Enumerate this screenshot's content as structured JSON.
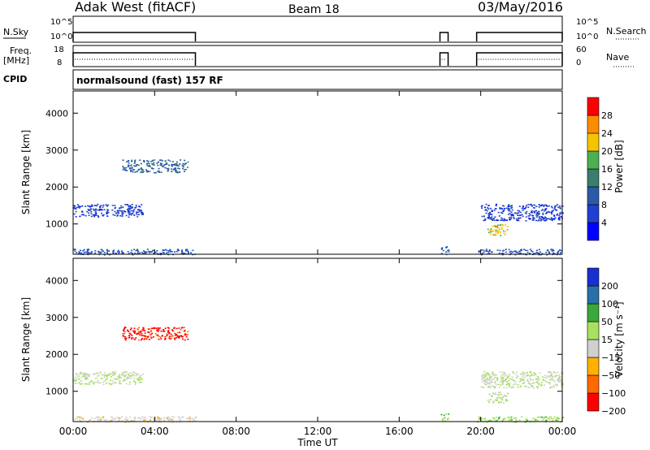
{
  "header": {
    "station": "Adak West (fitACF)",
    "beam": "Beam 18",
    "date": "03/May/2016"
  },
  "side_labels": {
    "nsky": "N.Sky",
    "freq": "Freq.",
    "freq_unit": "[MHz]",
    "cpid": "CPID",
    "nsearch": "N.Search",
    "nave": "Nave"
  },
  "cpid_text": "normalsound (fast) 157 RF",
  "noise_panel": {
    "left_ticks": [
      "10^5",
      "10^0"
    ],
    "right_ticks": [
      "10^5",
      "10^0"
    ]
  },
  "freq_panel": {
    "left_ticks": [
      "18",
      "8"
    ],
    "right_ticks": [
      "60",
      "0"
    ]
  },
  "chart_data": [
    {
      "type": "heatmap",
      "name": "power",
      "ylabel": "Slant Range [km]",
      "xlabel": "",
      "ylim": [
        180,
        4600
      ],
      "yticks": [
        "4000",
        "3000",
        "2000",
        "1000"
      ],
      "colorbar": {
        "label": "Power [dB]",
        "ticks": [
          "28",
          "24",
          "20",
          "16",
          "12",
          "8",
          "4"
        ],
        "range": [
          0,
          30
        ]
      },
      "echo_regions": [
        {
          "t_start": 0.0,
          "t_end": 3.4,
          "range_min": 1200,
          "range_max": 1550,
          "value": 6
        },
        {
          "t_start": 0.0,
          "t_end": 6.0,
          "range_min": 180,
          "range_max": 330,
          "value": 8
        },
        {
          "t_start": 2.4,
          "t_end": 5.6,
          "range_min": 2400,
          "range_max": 2750,
          "value": 10
        },
        {
          "t_start": 18.0,
          "t_end": 18.4,
          "range_min": 180,
          "range_max": 400,
          "value": 8
        },
        {
          "t_start": 19.8,
          "t_end": 24.0,
          "range_min": 180,
          "range_max": 330,
          "value": 8
        },
        {
          "t_start": 20.0,
          "t_end": 24.0,
          "range_min": 1100,
          "range_max": 1550,
          "value": 6
        },
        {
          "t_start": 20.3,
          "t_end": 21.3,
          "range_min": 700,
          "range_max": 1000,
          "value": 20
        }
      ]
    },
    {
      "type": "heatmap",
      "name": "velocity",
      "ylabel": "Slant Range [km]",
      "xlabel": "Time UT",
      "ylim": [
        180,
        4600
      ],
      "yticks": [
        "4000",
        "3000",
        "2000",
        "1000"
      ],
      "xticks": [
        "00:00",
        "04:00",
        "08:00",
        "12:00",
        "16:00",
        "20:00",
        "00:00"
      ],
      "colorbar": {
        "label": "Velocity [m s⁻¹]",
        "ticks": [
          "200",
          "100",
          "50",
          "15",
          "−15",
          "−50",
          "−100",
          "−200"
        ]
      },
      "echo_regions": [
        {
          "t_start": 0.0,
          "t_end": 3.4,
          "range_min": 1200,
          "range_max": 1550,
          "value": 0
        },
        {
          "t_start": 0.0,
          "t_end": 6.0,
          "range_min": 180,
          "range_max": 330,
          "value": -50
        },
        {
          "t_start": 2.4,
          "t_end": 5.6,
          "range_min": 2400,
          "range_max": 2750,
          "value": -200
        },
        {
          "t_start": 18.0,
          "t_end": 18.4,
          "range_min": 180,
          "range_max": 400,
          "value": 50
        },
        {
          "t_start": 19.8,
          "t_end": 24.0,
          "range_min": 180,
          "range_max": 330,
          "value": 50
        },
        {
          "t_start": 20.0,
          "t_end": 24.0,
          "range_min": 1100,
          "range_max": 1550,
          "value": 0
        },
        {
          "t_start": 20.3,
          "t_end": 21.3,
          "range_min": 700,
          "range_max": 1000,
          "value": 0
        }
      ]
    }
  ],
  "colors": {
    "power_scale": [
      "#0000ff",
      "#1f3fd0",
      "#2b5aa8",
      "#3a7d6e",
      "#4caf50",
      "#f5c400",
      "#ff8c00",
      "#ff0000"
    ],
    "velocity_scale": [
      "#ff0000",
      "#ff6a00",
      "#ffb000",
      "#d0d0d0",
      "#a8e060",
      "#3aa83a",
      "#2a6fa8",
      "#1a2fd0"
    ]
  }
}
